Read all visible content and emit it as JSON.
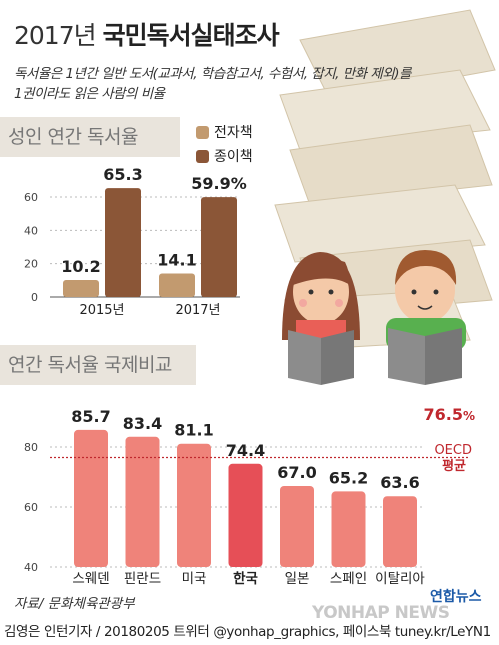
{
  "header": {
    "year": "2017년",
    "title": "국민독서실태조사",
    "description_line1": "독서율은 1년간 일반 도서(교과서, 학습참고서, 수험서, 잡지, 만화 제외)를",
    "description_line2": "1권이라도 읽은 사람의 비율"
  },
  "section1": {
    "title": "성인 연간 독서율"
  },
  "section2": {
    "title": "연간 독서율 국제비교"
  },
  "colors": {
    "ebook": "#c29a6f",
    "paper": "#8b5637",
    "intl_bar": "#ef837a",
    "korea_bar": "#e64f57",
    "oecd": "#c0282e"
  },
  "chart_data": [
    {
      "type": "bar",
      "title": "성인 연간 독서율",
      "categories": [
        "2015년",
        "2017년"
      ],
      "series": [
        {
          "name": "전자책",
          "values": [
            10.2,
            14.1
          ],
          "labels": [
            "10.2",
            "14.1"
          ]
        },
        {
          "name": "종이책",
          "values": [
            65.3,
            59.9
          ],
          "labels": [
            "65.3",
            "59.9%"
          ]
        }
      ],
      "yticks": [
        0,
        20,
        40,
        60
      ],
      "ylim": [
        0,
        75
      ],
      "legend": "top-right"
    },
    {
      "type": "bar",
      "title": "연간 독서율 국제비교",
      "categories": [
        "스웨덴",
        "핀란드",
        "미국",
        "한국",
        "일본",
        "스페인",
        "이탈리아"
      ],
      "values": [
        85.7,
        83.4,
        81.1,
        74.4,
        67.0,
        65.2,
        63.6
      ],
      "labels": [
        "85.7",
        "83.4",
        "81.1",
        "74.4",
        "67.0",
        "65.2",
        "63.6"
      ],
      "highlight": "한국",
      "yticks": [
        40,
        60,
        80
      ],
      "ylim": [
        40,
        90
      ],
      "reference_line": {
        "value": 76.5,
        "label": "76.5",
        "unit": "%",
        "name_line1": "OECD",
        "name_line2": "평균"
      }
    }
  ],
  "footer": {
    "source": "자료/ 문화체육관광부",
    "credit": "김영은 인턴기자 / 20180205   트위터 @yonhap_graphics, 페이스북 tuney.kr/LeYN1",
    "logo_text": "연합뉴스",
    "watermark": "YONHAP NEWS"
  }
}
